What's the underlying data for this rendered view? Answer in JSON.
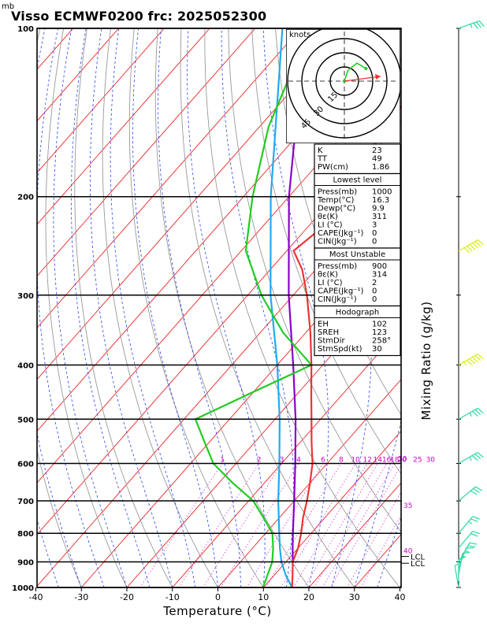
{
  "title": {
    "unit_label": "mb",
    "text": "Visso ECMWF0200  frc: 2025052300"
  },
  "chart_data": {
    "type": "skew-t",
    "xlabel": "Temperature (°C)",
    "right_axis_label": "Mixing Ratio (g/kg)",
    "x_ticks": [
      -40,
      -30,
      -20,
      -10,
      0,
      10,
      20,
      30,
      40
    ],
    "p_ticks": [
      100,
      200,
      300,
      400,
      500,
      600,
      700,
      800,
      900,
      1000
    ],
    "temperature_profile": [
      {
        "p": 1000,
        "t": 16.3
      },
      {
        "p": 950,
        "t": 14.0
      },
      {
        "p": 900,
        "t": 11.5
      },
      {
        "p": 850,
        "t": 10.0
      },
      {
        "p": 800,
        "t": 7.8
      },
      {
        "p": 750,
        "t": 5.2
      },
      {
        "p": 700,
        "t": 2.8
      },
      {
        "p": 650,
        "t": 0.0
      },
      {
        "p": 600,
        "t": -3.2
      },
      {
        "p": 550,
        "t": -7.5
      },
      {
        "p": 500,
        "t": -12.0
      },
      {
        "p": 450,
        "t": -17.0
      },
      {
        "p": 400,
        "t": -22.5
      },
      {
        "p": 350,
        "t": -29.0
      },
      {
        "p": 300,
        "t": -37.0
      },
      {
        "p": 270,
        "t": -43.0
      },
      {
        "p": 250,
        "t": -48.5
      },
      {
        "p": 230,
        "t": -47.0
      },
      {
        "p": 200,
        "t": -49.0
      },
      {
        "p": 150,
        "t": -52.0
      },
      {
        "p": 100,
        "t": -56.0
      }
    ],
    "dewpoint_profile": [
      {
        "p": 1000,
        "t": 9.9
      },
      {
        "p": 950,
        "t": 8.5
      },
      {
        "p": 900,
        "t": 7.0
      },
      {
        "p": 850,
        "t": 4.5
      },
      {
        "p": 800,
        "t": 1.5
      },
      {
        "p": 750,
        "t": -3.5
      },
      {
        "p": 700,
        "t": -9.0
      },
      {
        "p": 650,
        "t": -17.0
      },
      {
        "p": 600,
        "t": -25.0
      },
      {
        "p": 550,
        "t": -31.0
      },
      {
        "p": 500,
        "t": -37.5
      },
      {
        "p": 450,
        "t": -30.5
      },
      {
        "p": 400,
        "t": -22.5
      },
      {
        "p": 350,
        "t": -35.0
      },
      {
        "p": 300,
        "t": -47.0
      },
      {
        "p": 250,
        "t": -59.0
      },
      {
        "p": 200,
        "t": -68.0
      },
      {
        "p": 150,
        "t": -78.0
      },
      {
        "p": 100,
        "t": -88.0
      }
    ],
    "parcel_blue": [
      {
        "p": 1000,
        "t": 16.3
      },
      {
        "p": 950,
        "t": 12.5
      },
      {
        "p": 900,
        "t": 9.0
      },
      {
        "p": 850,
        "t": 6.0
      },
      {
        "p": 800,
        "t": 3.0
      },
      {
        "p": 700,
        "t": -3.5
      },
      {
        "p": 600,
        "t": -10.5
      },
      {
        "p": 500,
        "t": -19.0
      },
      {
        "p": 400,
        "t": -30.0
      },
      {
        "p": 300,
        "t": -45.0
      },
      {
        "p": 200,
        "t": -64.0
      },
      {
        "p": 100,
        "t": -94.0
      }
    ],
    "parcel_purple": [
      {
        "p": 900,
        "t": 11.5
      },
      {
        "p": 850,
        "t": 8.8
      },
      {
        "p": 800,
        "t": 6.0
      },
      {
        "p": 700,
        "t": 0.0
      },
      {
        "p": 600,
        "t": -7.0
      },
      {
        "p": 500,
        "t": -15.5
      },
      {
        "p": 400,
        "t": -26.5
      },
      {
        "p": 300,
        "t": -41.0
      },
      {
        "p": 200,
        "t": -60.0
      },
      {
        "p": 100,
        "t": -89.0
      }
    ],
    "mixing_ratio_labels": [
      "1",
      "2",
      "3",
      "4",
      "6",
      "8",
      "10",
      "12",
      "14",
      "16",
      "18",
      "20",
      "25",
      "30"
    ],
    "isotherm_labels": [
      "30",
      "35",
      "40"
    ],
    "lcl_labels": [
      "LCL",
      "LCL"
    ],
    "hodograph": {
      "unit": "knots",
      "ring_labels": [
        "15",
        "30",
        "45"
      ],
      "trace_kt": [
        [
          0,
          0
        ],
        [
          2,
          6
        ],
        [
          7,
          10
        ],
        [
          12,
          7
        ]
      ],
      "storm_motion_kt": [
        8,
        2
      ]
    },
    "stats_block1": {
      "rows": [
        {
          "label": "K",
          "value": "23"
        },
        {
          "label": "TT",
          "value": "49"
        },
        {
          "label": "PW(cm)",
          "value": "1.86"
        }
      ]
    },
    "lowest_level": {
      "heading": "Lowest level",
      "rows": [
        {
          "label": "Press(mb)",
          "value": "1000"
        },
        {
          "label": "Temp(°C)",
          "value": "16.3"
        },
        {
          "label": "Dewp(°C)",
          "value": "9.9"
        },
        {
          "label": "θε(K)",
          "value": "311"
        },
        {
          "label": "LI (°C)",
          "value": "3"
        },
        {
          "label": "CAPE(Jkg⁻¹)",
          "value": "0"
        },
        {
          "label": "CIN(Jkg⁻¹)",
          "value": "0"
        }
      ]
    },
    "most_unstable": {
      "heading": "Most Unstable",
      "rows": [
        {
          "label": "Press(mb)",
          "value": "900"
        },
        {
          "label": "θε(K)",
          "value": "314"
        },
        {
          "label": "LI (°C)",
          "value": "2"
        },
        {
          "label": "CAPE(Jkg⁻¹)",
          "value": "0"
        },
        {
          "label": "CIN(Jkg⁻¹)",
          "value": "0"
        }
      ]
    },
    "hodograph_stats": {
      "heading": "Hodograph",
      "rows": [
        {
          "label": "EH",
          "value": "102"
        },
        {
          "label": "SREH",
          "value": "123"
        },
        {
          "label": "StmDir",
          "value": "258°"
        },
        {
          "label": "StmSpd(kt)",
          "value": "30"
        }
      ]
    },
    "wind_barbs": [
      {
        "p": 100,
        "dir": 250,
        "kt": 35
      },
      {
        "p": 250,
        "dir": 240,
        "kt": 60
      },
      {
        "p": 400,
        "dir": 240,
        "kt": 55
      },
      {
        "p": 500,
        "dir": 240,
        "kt": 35
      },
      {
        "p": 600,
        "dir": 240,
        "kt": 35
      },
      {
        "p": 700,
        "dir": 230,
        "kt": 30
      },
      {
        "p": 800,
        "dir": 220,
        "kt": 25
      },
      {
        "p": 850,
        "dir": 220,
        "kt": 20
      },
      {
        "p": 900,
        "dir": 210,
        "kt": 20
      },
      {
        "p": 925,
        "dir": 200,
        "kt": 15
      },
      {
        "p": 950,
        "dir": 190,
        "kt": 15
      },
      {
        "p": 975,
        "dir": 180,
        "kt": 10
      },
      {
        "p": 1000,
        "dir": 170,
        "kt": 10
      }
    ],
    "colors": {
      "temperature": "#ee3333",
      "dewpoint": "#22cc22",
      "parcel_blue": "#22aaee",
      "parcel_purple": "#8800cc",
      "isotherm": "#ee2222",
      "dry_adiabat": "#999999",
      "moist_adiabat": "#2244ee",
      "mixing_ratio": "#cc00cc",
      "barb": "#33ddaa",
      "barb_high": "#ddee22"
    }
  }
}
